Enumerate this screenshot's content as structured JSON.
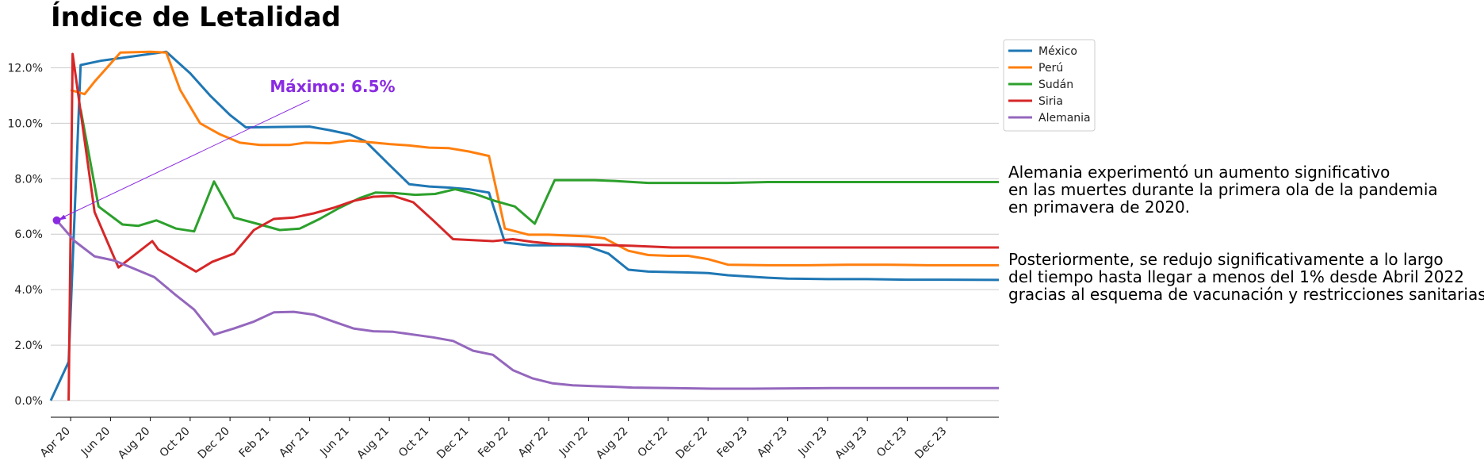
{
  "chart_data": {
    "type": "line",
    "title": "Índice de Letalidad",
    "xlabel": "",
    "ylabel": "",
    "ylim": [
      -0.6,
      13.3
    ],
    "y_ticks": [
      0,
      2,
      4,
      6,
      8,
      10,
      12
    ],
    "y_tick_labels": [
      "0.0%",
      "2.0%",
      "4.0%",
      "6.0%",
      "8.0%",
      "10.0%",
      "12.0%"
    ],
    "x_tick_labels": [
      "Apr 20",
      "Jun 20",
      "Aug 20",
      "Oct 20",
      "Dec 20",
      "Feb 21",
      "Apr 21",
      "Jun 21",
      "Aug 21",
      "Oct 21",
      "Dec 21",
      "Feb 22",
      "Apr 22",
      "Jun 22",
      "Aug 22",
      "Oct 22",
      "Dec 22",
      "Feb 23",
      "Apr 23",
      "Jun 23",
      "Aug 23",
      "Oct 23",
      "Dec 23"
    ],
    "x_tick_months": [
      1,
      3,
      5,
      7,
      9,
      11,
      13,
      15,
      17,
      19,
      21,
      23,
      25,
      27,
      29,
      31,
      33,
      35,
      37,
      39,
      41,
      43,
      45
    ],
    "xlim_months": [
      0,
      47.6
    ],
    "legend_position": "top-right",
    "grid": "horizontal",
    "series": [
      {
        "name": "México",
        "color": "#1f77b4",
        "points": [
          [
            0,
            0
          ],
          [
            0.9,
            1.4
          ],
          [
            1.5,
            12.1
          ],
          [
            2.5,
            12.25
          ],
          [
            4,
            12.4
          ],
          [
            5.8,
            12.58
          ],
          [
            7,
            11.8
          ],
          [
            8,
            11.0
          ],
          [
            9,
            10.3
          ],
          [
            9.8,
            9.85
          ],
          [
            12,
            9.87
          ],
          [
            13,
            9.88
          ],
          [
            14,
            9.75
          ],
          [
            15,
            9.6
          ],
          [
            15.8,
            9.35
          ],
          [
            17,
            8.5
          ],
          [
            18,
            7.8
          ],
          [
            19,
            7.72
          ],
          [
            20,
            7.68
          ],
          [
            21,
            7.62
          ],
          [
            22,
            7.5
          ],
          [
            22.8,
            5.7
          ],
          [
            24,
            5.6
          ],
          [
            25,
            5.6
          ],
          [
            26,
            5.6
          ],
          [
            27,
            5.55
          ],
          [
            28,
            5.3
          ],
          [
            29,
            4.72
          ],
          [
            30,
            4.65
          ],
          [
            32,
            4.62
          ],
          [
            33,
            4.6
          ],
          [
            34,
            4.52
          ],
          [
            36,
            4.43
          ],
          [
            37,
            4.4
          ],
          [
            39,
            4.38
          ],
          [
            41,
            4.38
          ],
          [
            43,
            4.36
          ],
          [
            45,
            4.36
          ],
          [
            47.6,
            4.35
          ]
        ]
      },
      {
        "name": "Perú",
        "color": "#ff7f0e",
        "points": [
          [
            1,
            11.2
          ],
          [
            1.7,
            11.05
          ],
          [
            2.2,
            11.5
          ],
          [
            3.5,
            12.55
          ],
          [
            5,
            12.58
          ],
          [
            5.8,
            12.55
          ],
          [
            6.5,
            11.2
          ],
          [
            7.5,
            10.0
          ],
          [
            8.5,
            9.6
          ],
          [
            9.5,
            9.3
          ],
          [
            10.5,
            9.22
          ],
          [
            12,
            9.22
          ],
          [
            12.8,
            9.3
          ],
          [
            14,
            9.28
          ],
          [
            15,
            9.38
          ],
          [
            16,
            9.32
          ],
          [
            17,
            9.25
          ],
          [
            18,
            9.2
          ],
          [
            19,
            9.12
          ],
          [
            20,
            9.1
          ],
          [
            21,
            8.98
          ],
          [
            22,
            8.82
          ],
          [
            22.8,
            6.2
          ],
          [
            24,
            5.98
          ],
          [
            25,
            5.98
          ],
          [
            26,
            5.95
          ],
          [
            27,
            5.92
          ],
          [
            27.8,
            5.85
          ],
          [
            29,
            5.4
          ],
          [
            30,
            5.25
          ],
          [
            31,
            5.22
          ],
          [
            32,
            5.22
          ],
          [
            33,
            5.1
          ],
          [
            34,
            4.9
          ],
          [
            36,
            4.88
          ],
          [
            38,
            4.88
          ],
          [
            40,
            4.9
          ],
          [
            42,
            4.9
          ],
          [
            44,
            4.88
          ],
          [
            47.6,
            4.88
          ]
        ]
      },
      {
        "name": "Sudán",
        "color": "#2ca02c",
        "points": [
          [
            1.5,
            10.5
          ],
          [
            2.4,
            7.0
          ],
          [
            3.6,
            6.35
          ],
          [
            4.4,
            6.3
          ],
          [
            5.3,
            6.5
          ],
          [
            6.3,
            6.2
          ],
          [
            7.2,
            6.1
          ],
          [
            8.2,
            7.9
          ],
          [
            9.2,
            6.6
          ],
          [
            10.5,
            6.35
          ],
          [
            11.5,
            6.15
          ],
          [
            12.5,
            6.2
          ],
          [
            13.5,
            6.55
          ],
          [
            14.5,
            6.95
          ],
          [
            15.5,
            7.3
          ],
          [
            16.3,
            7.5
          ],
          [
            17.3,
            7.48
          ],
          [
            18.3,
            7.42
          ],
          [
            19.3,
            7.45
          ],
          [
            20.3,
            7.62
          ],
          [
            21.3,
            7.45
          ],
          [
            22.3,
            7.2
          ],
          [
            23.3,
            7.0
          ],
          [
            24.3,
            6.38
          ],
          [
            25.3,
            7.95
          ],
          [
            26.3,
            7.95
          ],
          [
            27.3,
            7.95
          ],
          [
            28.3,
            7.92
          ],
          [
            30,
            7.85
          ],
          [
            32,
            7.85
          ],
          [
            34,
            7.85
          ],
          [
            36,
            7.88
          ],
          [
            38,
            7.88
          ],
          [
            40,
            7.88
          ],
          [
            42,
            7.88
          ],
          [
            44,
            7.88
          ],
          [
            47.6,
            7.88
          ]
        ]
      },
      {
        "name": "Siria",
        "color": "#d62728",
        "points": [
          [
            0.9,
            0
          ],
          [
            1.1,
            12.5
          ],
          [
            2.2,
            6.8
          ],
          [
            3.4,
            4.8
          ],
          [
            5.1,
            5.75
          ],
          [
            5.4,
            5.45
          ],
          [
            7.3,
            4.65
          ],
          [
            8.1,
            5.0
          ],
          [
            9.2,
            5.3
          ],
          [
            10.2,
            6.15
          ],
          [
            11.2,
            6.55
          ],
          [
            12.2,
            6.6
          ],
          [
            13.2,
            6.75
          ],
          [
            14.2,
            6.95
          ],
          [
            15.2,
            7.2
          ],
          [
            16.2,
            7.35
          ],
          [
            17.2,
            7.38
          ],
          [
            18.2,
            7.15
          ],
          [
            19.2,
            6.5
          ],
          [
            20.2,
            5.82
          ],
          [
            22.2,
            5.75
          ],
          [
            23.2,
            5.82
          ],
          [
            24.2,
            5.72
          ],
          [
            25.2,
            5.65
          ],
          [
            27.2,
            5.62
          ],
          [
            29.2,
            5.58
          ],
          [
            31.2,
            5.52
          ],
          [
            33.2,
            5.52
          ],
          [
            35.2,
            5.52
          ],
          [
            37.2,
            5.52
          ],
          [
            39.2,
            5.52
          ],
          [
            41.2,
            5.52
          ],
          [
            43.2,
            5.52
          ],
          [
            47.6,
            5.52
          ]
        ]
      },
      {
        "name": "Alemania",
        "color": "#9467bd",
        "points": [
          [
            0.3,
            6.5
          ],
          [
            1.2,
            5.75
          ],
          [
            2.2,
            5.2
          ],
          [
            3.2,
            5.05
          ],
          [
            4.2,
            4.75
          ],
          [
            5.2,
            4.45
          ],
          [
            6.2,
            3.85
          ],
          [
            7.2,
            3.28
          ],
          [
            8.2,
            2.38
          ],
          [
            9.2,
            2.6
          ],
          [
            10.2,
            2.85
          ],
          [
            11.2,
            3.18
          ],
          [
            12.2,
            3.2
          ],
          [
            13.2,
            3.1
          ],
          [
            14.2,
            2.85
          ],
          [
            15.2,
            2.6
          ],
          [
            16.2,
            2.5
          ],
          [
            17.2,
            2.48
          ],
          [
            18.2,
            2.38
          ],
          [
            19.2,
            2.28
          ],
          [
            20.2,
            2.15
          ],
          [
            21.2,
            1.8
          ],
          [
            22.2,
            1.65
          ],
          [
            23.2,
            1.1
          ],
          [
            24.2,
            0.8
          ],
          [
            25.2,
            0.62
          ],
          [
            26.2,
            0.55
          ],
          [
            27.2,
            0.52
          ],
          [
            28.2,
            0.5
          ],
          [
            29.2,
            0.47
          ],
          [
            31.2,
            0.45
          ],
          [
            33.2,
            0.43
          ],
          [
            35.2,
            0.43
          ],
          [
            37.2,
            0.44
          ],
          [
            39.2,
            0.45
          ],
          [
            41.2,
            0.45
          ],
          [
            43.2,
            0.45
          ],
          [
            47.6,
            0.45
          ]
        ]
      }
    ],
    "annotation": {
      "text": "Máximo: 6.5%",
      "point": [
        0.3,
        6.5
      ],
      "text_position": [
        11,
        11.12
      ],
      "color": "#8a2be2"
    },
    "notes": [
      "Alemania experimentó un aumento significativo\nen las muertes durante la primera ola de la pandemia\nen primavera de 2020.",
      "Posteriormente, se redujo significativamente a lo largo\ndel tiempo hasta llegar a menos del 1% desde Abril 2022\ngracias al esquema de vacunación y restricciones sanitarias."
    ]
  }
}
